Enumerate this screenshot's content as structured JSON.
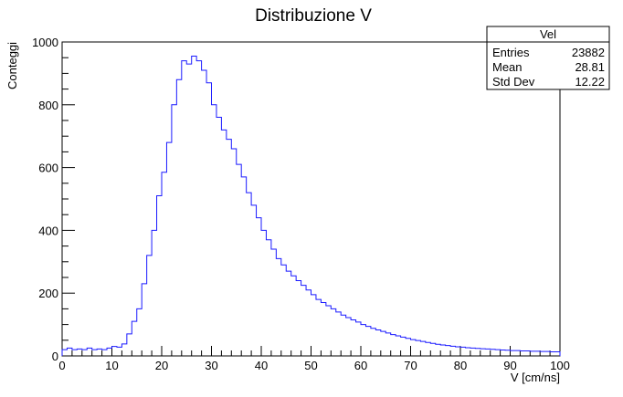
{
  "chart_data": {
    "type": "histogram",
    "title": "Distribuzione V",
    "xlabel": "V [cm/ns]",
    "ylabel": "Conteggi",
    "xlim": [
      0,
      100
    ],
    "ylim": [
      0,
      1000
    ],
    "x_ticks": [
      "0",
      "10",
      "20",
      "30",
      "40",
      "50",
      "60",
      "70",
      "80",
      "90",
      "100"
    ],
    "y_ticks": [
      "0",
      "200",
      "400",
      "600",
      "800",
      "1000"
    ],
    "bin_width": 1,
    "values": [
      20,
      25,
      20,
      22,
      20,
      25,
      20,
      22,
      20,
      25,
      30,
      28,
      38,
      70,
      110,
      150,
      230,
      320,
      400,
      510,
      585,
      680,
      800,
      880,
      940,
      930,
      955,
      940,
      910,
      870,
      800,
      760,
      720,
      690,
      660,
      610,
      570,
      520,
      480,
      440,
      400,
      370,
      340,
      310,
      290,
      270,
      255,
      240,
      225,
      210,
      195,
      180,
      170,
      160,
      150,
      140,
      130,
      122,
      115,
      108,
      100,
      94,
      88,
      83,
      78,
      73,
      68,
      64,
      60,
      56,
      52,
      49,
      46,
      43,
      40,
      37,
      35,
      33,
      31,
      29,
      28,
      26,
      25,
      24,
      23,
      22,
      21,
      20,
      19,
      18,
      17,
      17,
      16,
      16,
      15,
      15,
      14,
      14,
      13,
      13
    ],
    "stats": {
      "name": "Vel",
      "rows": [
        {
          "label": "Entries",
          "value": "23882"
        },
        {
          "label": "Mean",
          "value": "28.81"
        },
        {
          "label": "Std Dev",
          "value": "12.22"
        }
      ]
    },
    "line_color": "#1a1aff"
  }
}
